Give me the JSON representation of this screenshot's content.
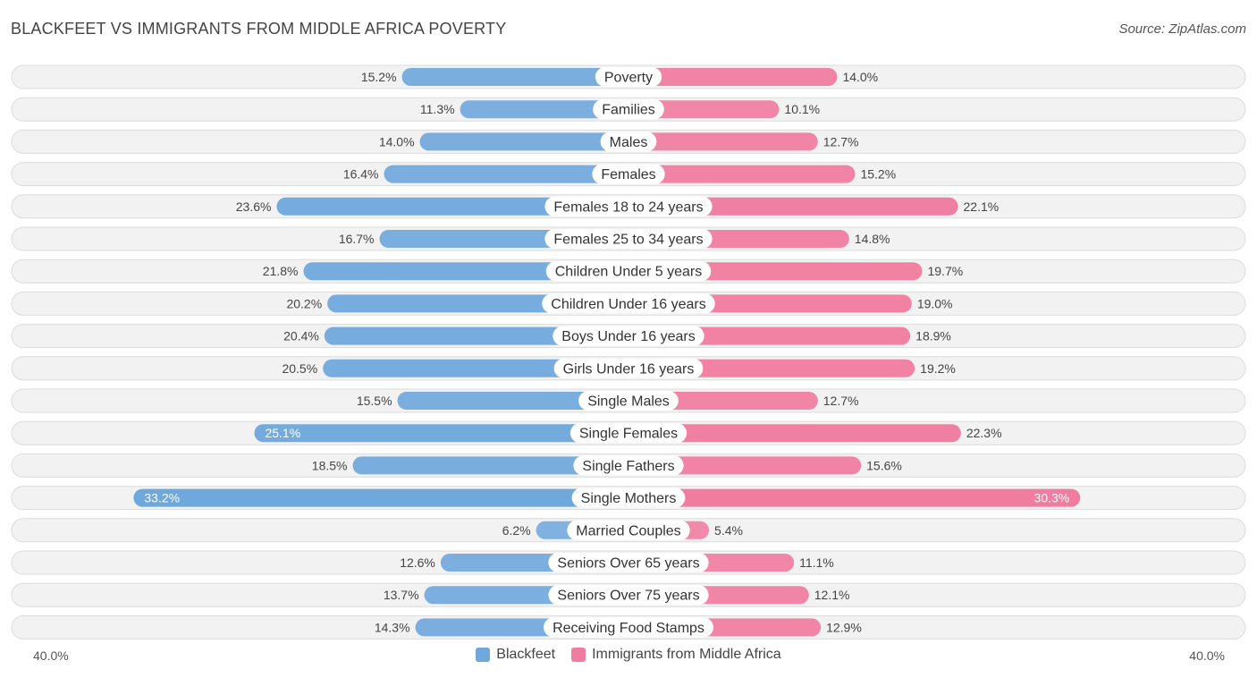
{
  "title": "BLACKFEET VS IMMIGRANTS FROM MIDDLE AFRICA POVERTY",
  "source": "Source: ZipAtlas.com",
  "colors": {
    "left": "#6fa8dc",
    "right": "#f07ca0",
    "left_light": "#a9c8ec",
    "right_light": "#f5a9c2"
  },
  "chart_data": {
    "type": "bar",
    "orientation": "diverging-horizontal",
    "title": "BLACKFEET VS IMMIGRANTS FROM MIDDLE AFRICA POVERTY",
    "axis_min_label": "40.0%",
    "axis_max_label": "40.0%",
    "xlim": [
      0,
      40
    ],
    "legend": {
      "left": "Blackfeet",
      "right": "Immigrants from Middle Africa"
    },
    "categories": [
      "Poverty",
      "Families",
      "Males",
      "Females",
      "Females 18 to 24 years",
      "Females 25 to 34 years",
      "Children Under 5 years",
      "Children Under 16 years",
      "Boys Under 16 years",
      "Girls Under 16 years",
      "Single Males",
      "Single Females",
      "Single Fathers",
      "Single Mothers",
      "Married Couples",
      "Seniors Over 65 years",
      "Seniors Over 75 years",
      "Receiving Food Stamps"
    ],
    "series": [
      {
        "name": "Blackfeet",
        "values": [
          15.2,
          11.3,
          14.0,
          16.4,
          23.6,
          16.7,
          21.8,
          20.2,
          20.4,
          20.5,
          15.5,
          25.1,
          18.5,
          33.2,
          6.2,
          12.6,
          13.7,
          14.3
        ],
        "labels": [
          "15.2%",
          "11.3%",
          "14.0%",
          "16.4%",
          "23.6%",
          "16.7%",
          "21.8%",
          "20.2%",
          "20.4%",
          "20.5%",
          "15.5%",
          "25.1%",
          "18.5%",
          "33.2%",
          "6.2%",
          "12.6%",
          "13.7%",
          "14.3%"
        ]
      },
      {
        "name": "Immigrants from Middle Africa",
        "values": [
          14.0,
          10.1,
          12.7,
          15.2,
          22.1,
          14.8,
          19.7,
          19.0,
          18.9,
          19.2,
          12.7,
          22.3,
          15.6,
          30.3,
          5.4,
          11.1,
          12.1,
          12.9
        ],
        "labels": [
          "14.0%",
          "10.1%",
          "12.7%",
          "15.2%",
          "22.1%",
          "14.8%",
          "19.7%",
          "19.0%",
          "18.9%",
          "19.2%",
          "12.7%",
          "22.3%",
          "15.6%",
          "30.3%",
          "5.4%",
          "11.1%",
          "12.1%",
          "12.9%"
        ]
      }
    ]
  }
}
